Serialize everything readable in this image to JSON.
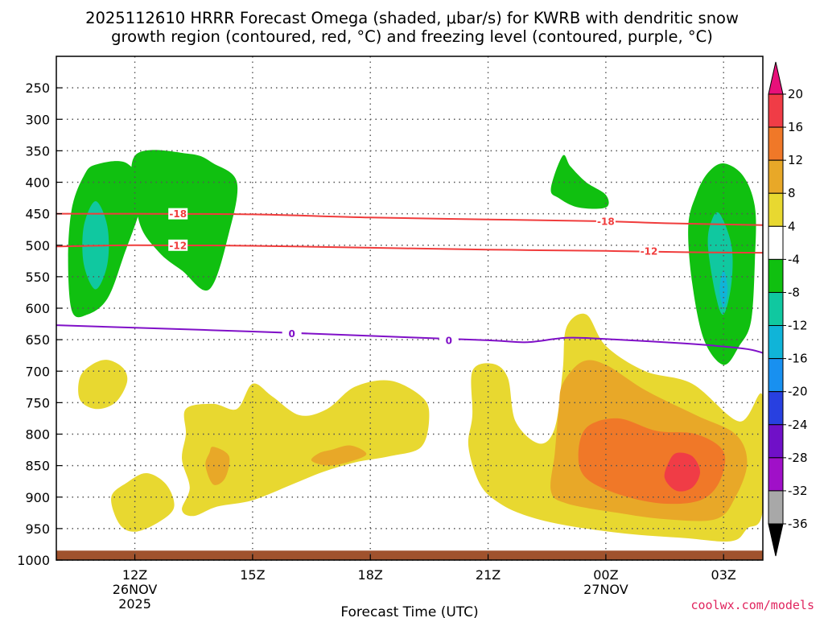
{
  "chart_data": {
    "type": "contour",
    "title_line1": "2025112610 HRRR Forecast Omega (shaded, μbar/s) for KWRB with dendritic snow",
    "title_line2": "growth region (contoured, red, °C) and freezing level (contoured, purple, °C)",
    "xlabel": "Forecast Time (UTC)",
    "ylabel": "",
    "x_ticks": [
      {
        "hour": 12,
        "label": "12Z",
        "date": "26NOV",
        "year": "2025"
      },
      {
        "hour": 15,
        "label": "15Z",
        "date": "",
        "year": ""
      },
      {
        "hour": 18,
        "label": "18Z",
        "date": "",
        "year": ""
      },
      {
        "hour": 21,
        "label": "21Z",
        "date": "",
        "year": ""
      },
      {
        "hour": 24,
        "label": "00Z",
        "date": "27NOV",
        "year": ""
      },
      {
        "hour": 27,
        "label": "03Z",
        "date": "",
        "year": ""
      }
    ],
    "x_range_hours": [
      10,
      28
    ],
    "y_ticks_hpa": [
      250,
      300,
      350,
      400,
      450,
      500,
      550,
      600,
      650,
      700,
      750,
      800,
      850,
      900,
      950,
      1000
    ],
    "y_range_hpa": [
      200,
      1000
    ],
    "colorbar": {
      "ticks": [
        "20",
        "16",
        "12",
        "8",
        "4",
        "-4",
        "-8",
        "-12",
        "-16",
        "-20",
        "-24",
        "-28",
        "-32",
        "-36"
      ],
      "colors": [
        "#e8107a",
        "#f03c46",
        "#f07828",
        "#e8a828",
        "#e8d830",
        "#ffffff",
        "#10c010",
        "#10c8a0",
        "#10b4d8",
        "#1890f0",
        "#2840e0",
        "#7010c8",
        "#a010c8",
        "#a8a8a8",
        "#000000"
      ]
    },
    "contours": [
      {
        "name": "dendritic-top",
        "level_c": -18,
        "color": "#f03c3c",
        "points": [
          [
            10,
            450
          ],
          [
            12,
            450
          ],
          [
            15,
            451
          ],
          [
            18,
            456
          ],
          [
            21,
            459
          ],
          [
            24,
            462
          ],
          [
            25.5,
            465
          ],
          [
            28,
            468
          ]
        ]
      },
      {
        "name": "dendritic-bottom",
        "level_c": -12,
        "color": "#f03c3c",
        "points": [
          [
            10,
            502
          ],
          [
            12,
            500
          ],
          [
            15,
            501
          ],
          [
            18,
            504
          ],
          [
            21,
            507
          ],
          [
            24,
            509
          ],
          [
            26,
            511
          ],
          [
            28,
            512
          ]
        ]
      },
      {
        "name": "freezing-level",
        "level_c": 0,
        "color": "#8010c8",
        "points": [
          [
            10,
            627
          ],
          [
            12,
            631
          ],
          [
            15,
            637
          ],
          [
            18,
            644
          ],
          [
            21,
            651
          ],
          [
            22,
            654
          ],
          [
            23,
            647
          ],
          [
            24,
            649
          ],
          [
            26,
            656
          ],
          [
            27.5,
            664
          ],
          [
            28,
            671
          ]
        ]
      }
    ],
    "contour_labels": [
      {
        "text": "-18",
        "x": 13.1,
        "y": 450,
        "color": "#f03c3c"
      },
      {
        "text": "-12",
        "x": 13.1,
        "y": 500,
        "color": "#f03c3c"
      },
      {
        "text": "-18",
        "x": 24.0,
        "y": 462,
        "color": "#f03c3c"
      },
      {
        "text": "-12",
        "x": 25.1,
        "y": 509,
        "color": "#f03c3c"
      },
      {
        "text": "0",
        "x": 16.0,
        "y": 640,
        "color": "#8010c8"
      },
      {
        "text": "0",
        "x": 20.0,
        "y": 651,
        "color": "#8010c8"
      }
    ],
    "omega_regions": [
      {
        "value_range": "-8 to -4",
        "color": "#10c010",
        "points": [
          [
            11.0,
            372
          ],
          [
            11.8,
            370
          ],
          [
            12.2,
            420
          ],
          [
            11.7,
            520
          ],
          [
            11.3,
            585
          ],
          [
            10.8,
            610
          ],
          [
            10.4,
            605
          ],
          [
            10.3,
            520
          ],
          [
            10.4,
            440
          ],
          [
            10.7,
            390
          ]
        ]
      },
      {
        "value_range": "-12 to -8",
        "color": "#10c8a0",
        "points": [
          [
            11.0,
            430
          ],
          [
            11.3,
            470
          ],
          [
            11.3,
            530
          ],
          [
            11.0,
            570
          ],
          [
            10.7,
            530
          ],
          [
            10.7,
            470
          ]
        ]
      },
      {
        "value_range": "-8 to -4",
        "color": "#10c010",
        "points": [
          [
            12.0,
            358
          ],
          [
            13.4,
            355
          ],
          [
            14.0,
            370
          ],
          [
            14.6,
            400
          ],
          [
            14.4,
            480
          ],
          [
            13.9,
            570
          ],
          [
            13.2,
            540
          ],
          [
            12.6,
            510
          ],
          [
            12.1,
            460
          ]
        ]
      },
      {
        "value_range": "-8 to -4",
        "color": "#10c010",
        "points": [
          [
            22.9,
            358
          ],
          [
            23.1,
            375
          ],
          [
            23.5,
            400
          ],
          [
            24.0,
            420
          ],
          [
            24.0,
            440
          ],
          [
            23.3,
            440
          ],
          [
            22.8,
            425
          ],
          [
            22.6,
            410
          ]
        ]
      },
      {
        "value_range": "-8 to -4",
        "color": "#10c010",
        "points": [
          [
            27.0,
            370
          ],
          [
            27.5,
            390
          ],
          [
            27.8,
            440
          ],
          [
            27.8,
            520
          ],
          [
            27.7,
            620
          ],
          [
            27.4,
            660
          ],
          [
            27.0,
            690
          ],
          [
            26.5,
            650
          ],
          [
            26.2,
            560
          ],
          [
            26.1,
            470
          ],
          [
            26.3,
            420
          ],
          [
            26.6,
            385
          ]
        ]
      },
      {
        "value_range": "-12 to -8",
        "color": "#10c8a0",
        "points": [
          [
            26.9,
            450
          ],
          [
            27.2,
            500
          ],
          [
            27.2,
            560
          ],
          [
            27.0,
            610
          ],
          [
            26.8,
            580
          ],
          [
            26.6,
            500
          ],
          [
            26.7,
            460
          ]
        ]
      },
      {
        "value_range": "-16 to -12",
        "color": "#10b4d8",
        "points": [
          [
            27.0,
            540
          ],
          [
            27.1,
            570
          ],
          [
            27.0,
            600
          ],
          [
            26.9,
            570
          ]
        ]
      },
      {
        "value_range": "4 to 8",
        "color": "#e8d830",
        "points": [
          [
            11.3,
            682
          ],
          [
            11.7,
            695
          ],
          [
            11.8,
            718
          ],
          [
            11.5,
            750
          ],
          [
            11.0,
            760
          ],
          [
            10.6,
            745
          ],
          [
            10.6,
            710
          ],
          [
            10.9,
            690
          ]
        ]
      },
      {
        "value_range": "4 to 8",
        "color": "#e8d830",
        "points": [
          [
            11.4,
            900
          ],
          [
            11.8,
            877
          ],
          [
            12.3,
            862
          ],
          [
            12.8,
            880
          ],
          [
            13.0,
            916
          ],
          [
            12.6,
            940
          ],
          [
            12.0,
            955
          ],
          [
            11.6,
            942
          ]
        ]
      },
      {
        "value_range": "4 to 8",
        "color": "#e8d830",
        "points": [
          [
            13.3,
            760
          ],
          [
            14.0,
            752
          ],
          [
            14.6,
            760
          ],
          [
            15.0,
            720
          ],
          [
            15.5,
            740
          ],
          [
            16.2,
            770
          ],
          [
            16.9,
            760
          ],
          [
            17.6,
            725
          ],
          [
            18.5,
            715
          ],
          [
            19.3,
            740
          ],
          [
            19.5,
            770
          ],
          [
            19.3,
            820
          ],
          [
            18.5,
            835
          ],
          [
            17.6,
            845
          ],
          [
            16.8,
            860
          ],
          [
            16.0,
            880
          ],
          [
            15.0,
            905
          ],
          [
            14.1,
            915
          ],
          [
            13.5,
            930
          ],
          [
            13.2,
            920
          ],
          [
            13.4,
            885
          ],
          [
            13.2,
            840
          ],
          [
            13.3,
            800
          ]
        ]
      },
      {
        "value_range": "8 to 12",
        "color": "#e8a828",
        "points": [
          [
            14.0,
            820
          ],
          [
            14.4,
            835
          ],
          [
            14.3,
            870
          ],
          [
            14.0,
            880
          ],
          [
            13.8,
            850
          ],
          [
            13.9,
            830
          ]
        ]
      },
      {
        "value_range": "8 to 12",
        "color": "#e8a828",
        "points": [
          [
            17.0,
            825
          ],
          [
            17.5,
            818
          ],
          [
            17.9,
            832
          ],
          [
            17.4,
            845
          ],
          [
            16.9,
            850
          ],
          [
            16.5,
            842
          ],
          [
            16.7,
            830
          ]
        ]
      },
      {
        "value_range": "4 to 8",
        "color": "#e8d830",
        "points": [
          [
            20.6,
            700
          ],
          [
            21.1,
            688
          ],
          [
            21.5,
            710
          ],
          [
            21.7,
            780
          ],
          [
            22.3,
            815
          ],
          [
            22.7,
            790
          ],
          [
            22.9,
            700
          ],
          [
            23.0,
            630
          ],
          [
            23.5,
            610
          ],
          [
            24.0,
            660
          ],
          [
            25.0,
            700
          ],
          [
            26.2,
            720
          ],
          [
            27.4,
            780
          ],
          [
            28.0,
            740
          ],
          [
            28.0,
            920
          ],
          [
            27.6,
            950
          ],
          [
            27.2,
            970
          ],
          [
            26.0,
            965
          ],
          [
            24.5,
            958
          ],
          [
            23.0,
            945
          ],
          [
            22.0,
            930
          ],
          [
            21.3,
            910
          ],
          [
            20.8,
            880
          ],
          [
            20.5,
            820
          ],
          [
            20.6,
            770
          ]
        ]
      },
      {
        "value_range": "8 to 12",
        "color": "#e8a828",
        "points": [
          [
            22.9,
            720
          ],
          [
            23.4,
            685
          ],
          [
            24.0,
            690
          ],
          [
            25.0,
            730
          ],
          [
            26.3,
            770
          ],
          [
            27.3,
            800
          ],
          [
            27.6,
            845
          ],
          [
            27.3,
            900
          ],
          [
            26.8,
            935
          ],
          [
            25.5,
            935
          ],
          [
            24.3,
            925
          ],
          [
            23.0,
            910
          ],
          [
            22.6,
            890
          ],
          [
            22.7,
            830
          ],
          [
            22.8,
            760
          ]
        ]
      },
      {
        "value_range": "12 to 16",
        "color": "#f07828",
        "points": [
          [
            23.5,
            790
          ],
          [
            24.3,
            775
          ],
          [
            25.3,
            795
          ],
          [
            26.3,
            800
          ],
          [
            27.0,
            828
          ],
          [
            26.9,
            875
          ],
          [
            26.4,
            905
          ],
          [
            25.4,
            910
          ],
          [
            24.3,
            895
          ],
          [
            23.5,
            870
          ],
          [
            23.3,
            835
          ]
        ]
      },
      {
        "value_range": "16 to 20",
        "color": "#f03c46",
        "points": [
          [
            25.8,
            830
          ],
          [
            26.2,
            835
          ],
          [
            26.4,
            860
          ],
          [
            26.2,
            885
          ],
          [
            25.8,
            890
          ],
          [
            25.5,
            870
          ],
          [
            25.6,
            845
          ]
        ]
      }
    ],
    "ground_band": {
      "from_hpa": 985,
      "to_hpa": 1000,
      "color": "#a0522d"
    }
  },
  "credit": "coolwx.com/models"
}
